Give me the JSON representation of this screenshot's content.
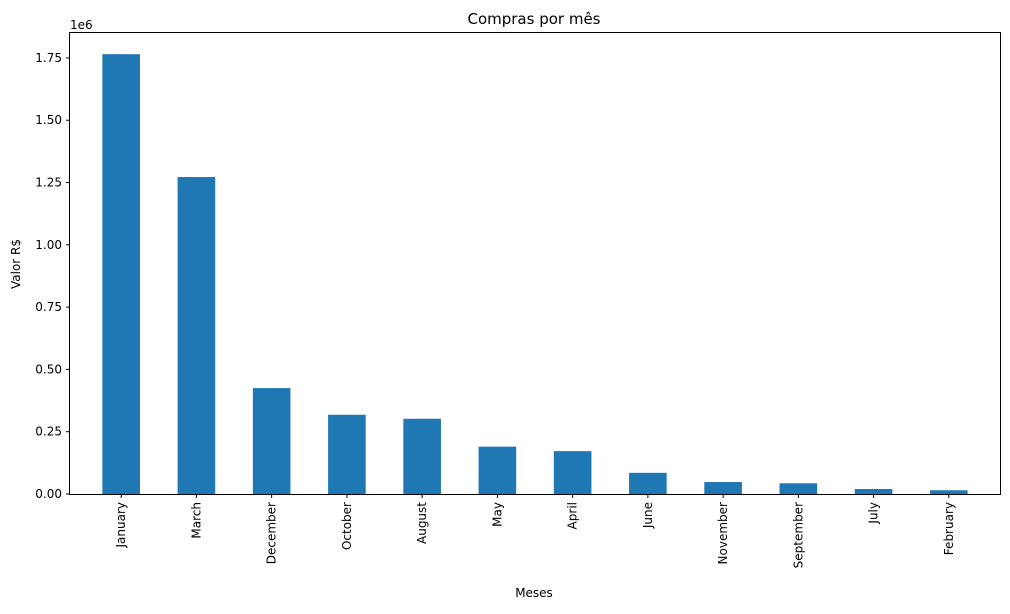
{
  "chart_data": {
    "type": "bar",
    "title": "Compras por mês",
    "xlabel": "Meses",
    "ylabel": "Valor R$",
    "y_offset_label": "1e6",
    "y_multiplier": 1000000,
    "categories": [
      "January",
      "March",
      "December",
      "October",
      "August",
      "May",
      "April",
      "June",
      "November",
      "September",
      "July",
      "February"
    ],
    "values": [
      1765000,
      1272000,
      425000,
      318000,
      302000,
      190000,
      172000,
      85000,
      48000,
      43000,
      20000,
      15000
    ],
    "ylim": [
      0,
      1850000
    ],
    "yticks": [
      0,
      250000,
      500000,
      750000,
      1000000,
      1250000,
      1500000,
      1750000
    ],
    "ytick_labels": [
      "0.00",
      "0.25",
      "0.50",
      "0.75",
      "1.00",
      "1.25",
      "1.50",
      "1.75"
    ],
    "bar_color": "#1f77b4",
    "grid": false,
    "legend": "none"
  }
}
